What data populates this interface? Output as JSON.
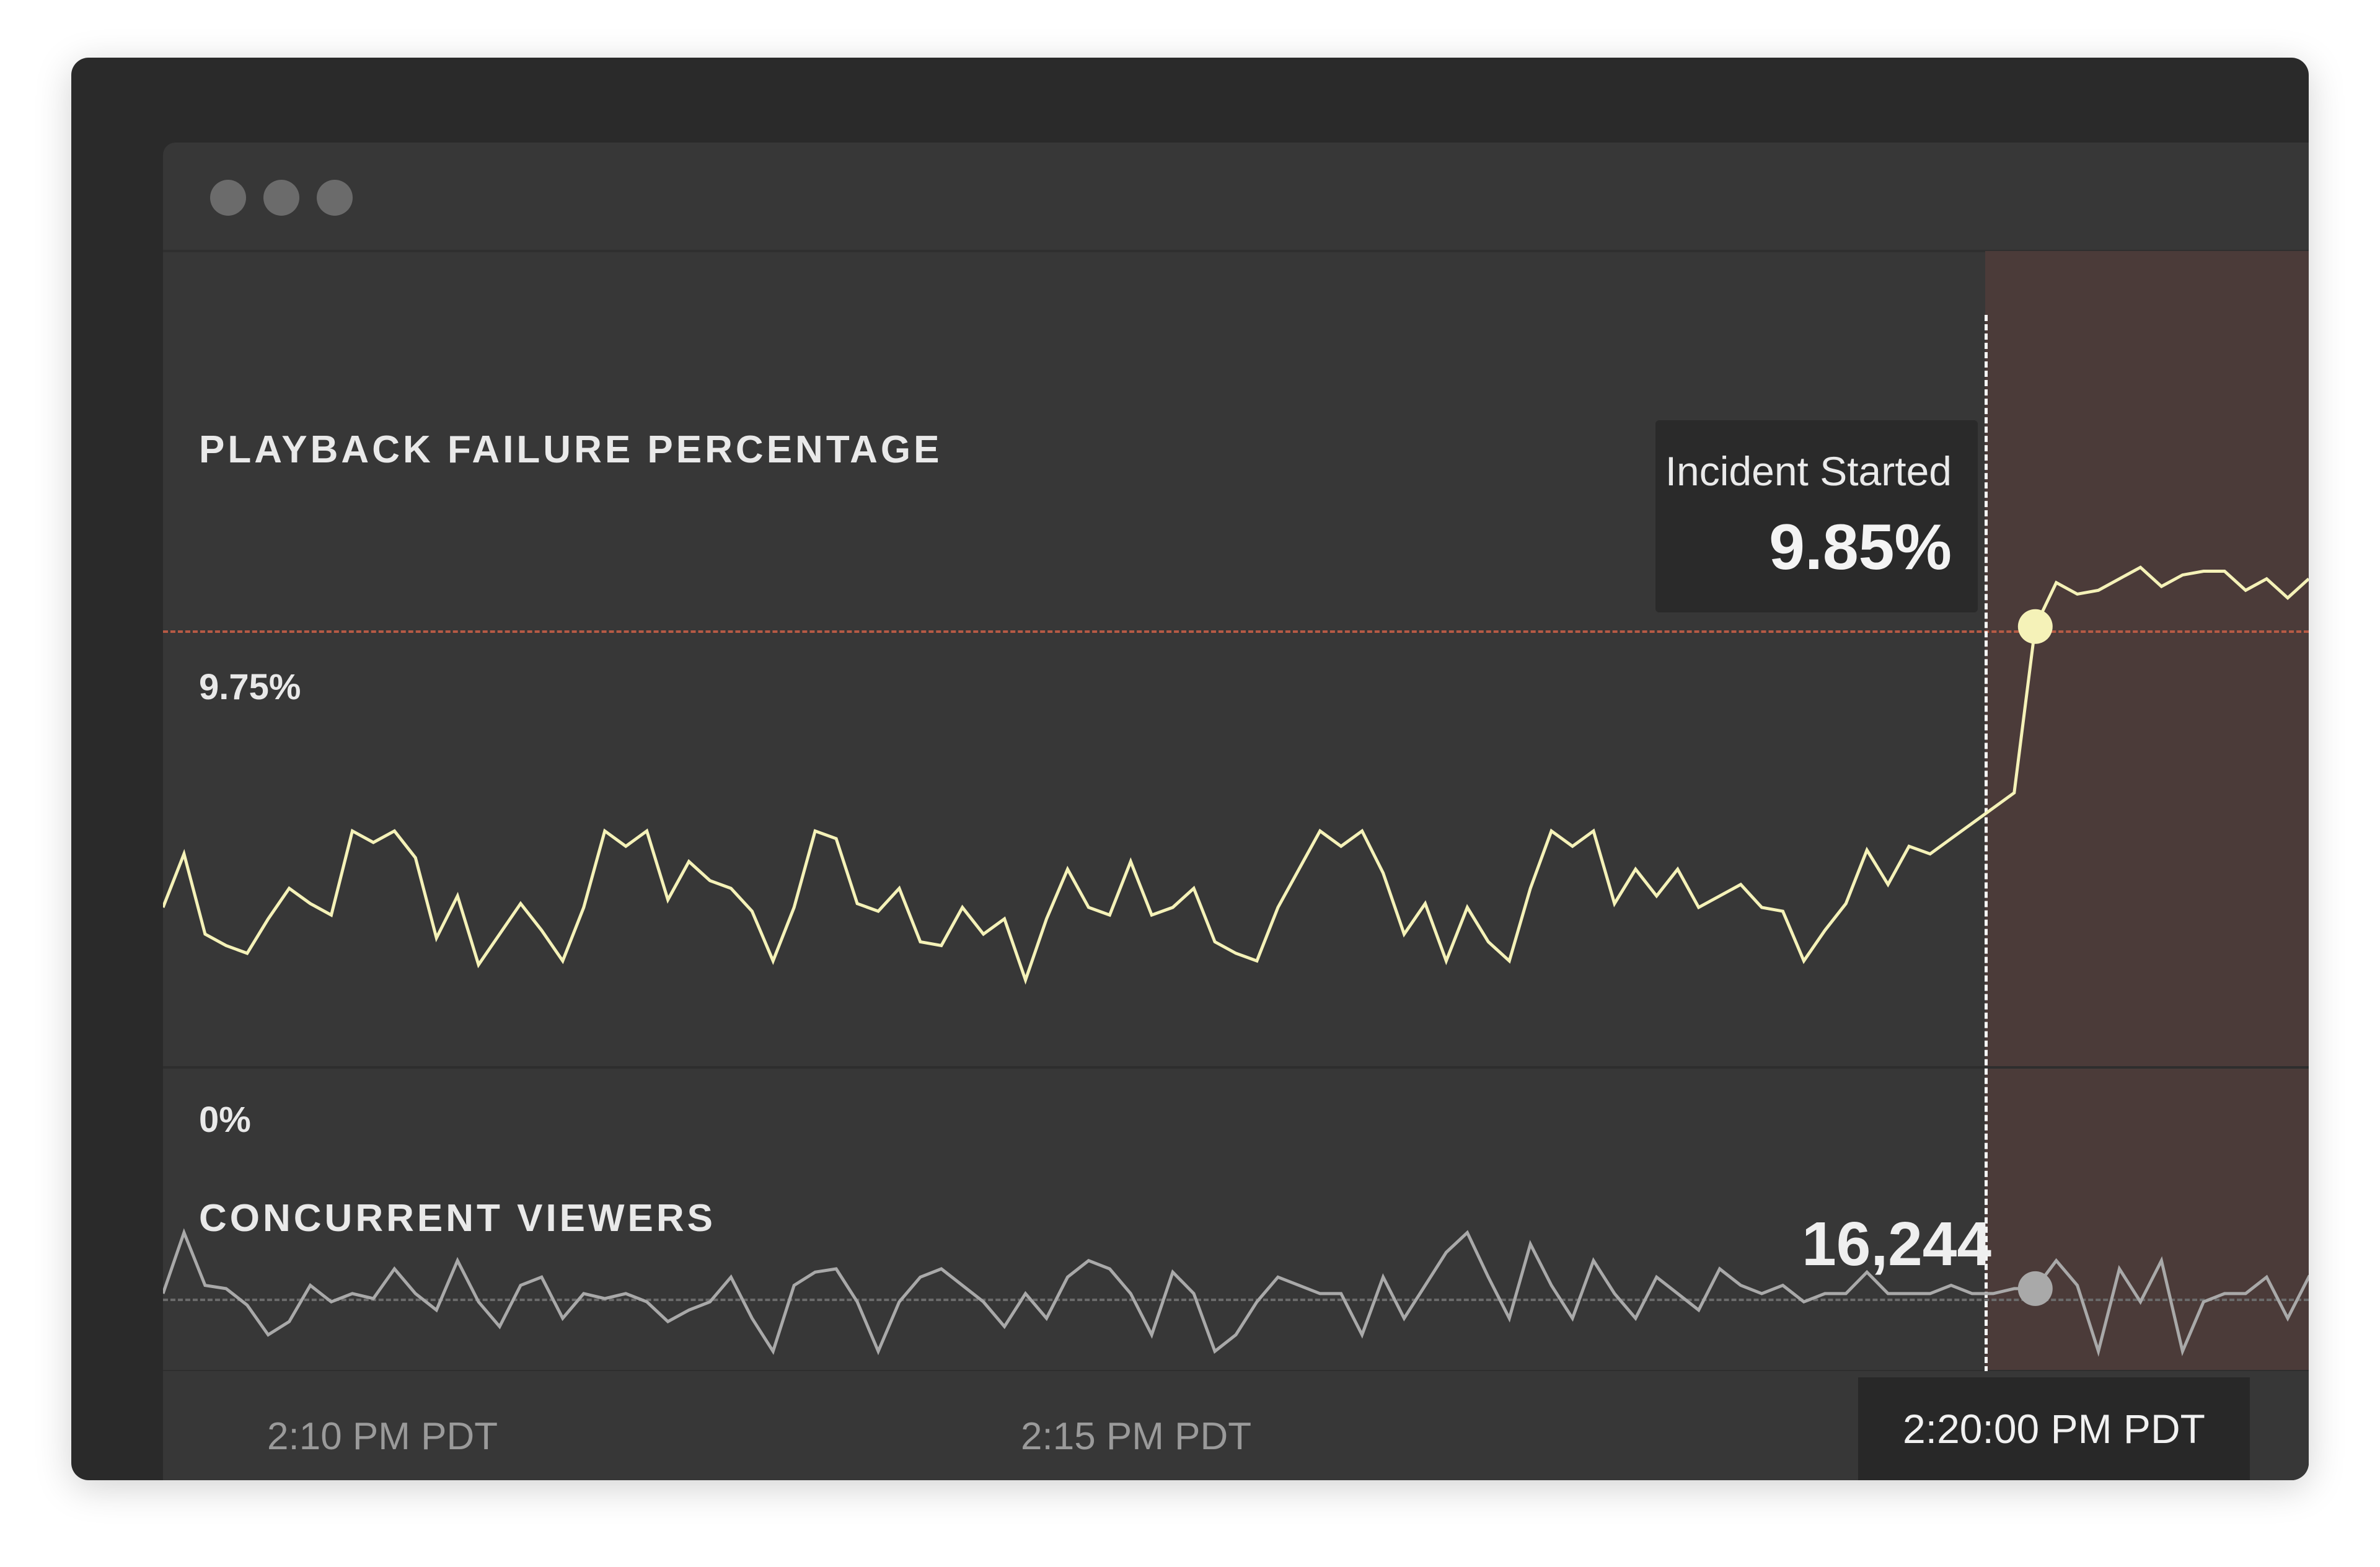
{
  "window": {
    "controls": [
      "close",
      "minimize",
      "zoom"
    ]
  },
  "failure_panel": {
    "title": "PLAYBACK FAILURE PERCENTAGE",
    "threshold_label": "9.75%",
    "baseline_label": "0%",
    "tooltip": {
      "label": "Incident Started",
      "value": "9.85%"
    }
  },
  "viewers_panel": {
    "title": "CONCURRENT VIEWERS",
    "current_value": "16,244"
  },
  "time_axis": {
    "labels": [
      "2:10 PM PDT",
      "2:15 PM PDT"
    ],
    "current": "2:20:00 PM PDT"
  },
  "colors": {
    "failure_line": "#f5f2b8",
    "viewers_line": "#a9a9a9",
    "incident_zone": "#4b3b39",
    "threshold": "#b65a45"
  },
  "chart_data": [
    {
      "type": "line",
      "title": "PLAYBACK FAILURE PERCENTAGE",
      "ylim": [
        0,
        12
      ],
      "ytick_labels": [
        "0%",
        "9.75%"
      ],
      "threshold": 9.75,
      "incident_index": 89,
      "incident_value": 9.85,
      "x_labels": [
        "2:10 PM PDT",
        "2:15 PM PDT",
        "2:20:00 PM PDT"
      ],
      "values": [
        2.5,
        3.9,
        1.8,
        1.5,
        1.3,
        2.2,
        3.0,
        2.6,
        2.3,
        4.5,
        4.2,
        4.5,
        3.8,
        1.7,
        2.8,
        1.0,
        1.8,
        2.6,
        1.9,
        1.1,
        2.5,
        4.5,
        4.1,
        4.5,
        2.7,
        3.7,
        3.2,
        3.0,
        2.4,
        1.1,
        2.5,
        4.5,
        4.3,
        2.6,
        2.4,
        3.0,
        1.6,
        1.5,
        2.5,
        1.8,
        2.2,
        0.6,
        2.2,
        3.5,
        2.5,
        2.3,
        3.7,
        2.3,
        2.5,
        3.0,
        1.6,
        1.3,
        1.1,
        2.5,
        3.5,
        4.5,
        4.1,
        4.5,
        3.4,
        1.8,
        2.6,
        1.1,
        2.5,
        1.6,
        1.1,
        3.0,
        4.5,
        4.1,
        4.5,
        2.6,
        3.5,
        2.8,
        3.5,
        2.5,
        2.8,
        3.1,
        2.5,
        2.4,
        1.1,
        1.9,
        2.6,
        4.0,
        3.1,
        4.1,
        3.9,
        4.3,
        4.7,
        5.1,
        5.5,
        9.85,
        11.0,
        10.7,
        10.8,
        11.1,
        11.4,
        10.9,
        11.2,
        11.3,
        11.3,
        10.8,
        11.1,
        10.6,
        11.1
      ]
    },
    {
      "type": "line",
      "title": "CONCURRENT VIEWERS",
      "incident_index": 89,
      "incident_value": "16,244",
      "x_labels": [
        "2:10 PM PDT",
        "2:15 PM PDT",
        "2:20:00 PM PDT"
      ],
      "values": [
        0.35,
        0.72,
        0.4,
        0.38,
        0.28,
        0.1,
        0.18,
        0.4,
        0.3,
        0.35,
        0.32,
        0.5,
        0.35,
        0.25,
        0.55,
        0.3,
        0.15,
        0.4,
        0.45,
        0.2,
        0.35,
        0.32,
        0.35,
        0.3,
        0.18,
        0.25,
        0.3,
        0.45,
        0.2,
        0.0,
        0.4,
        0.48,
        0.5,
        0.3,
        0.0,
        0.3,
        0.45,
        0.5,
        0.4,
        0.3,
        0.15,
        0.35,
        0.2,
        0.45,
        0.55,
        0.5,
        0.35,
        0.1,
        0.48,
        0.35,
        0.0,
        0.1,
        0.3,
        0.45,
        0.4,
        0.35,
        0.35,
        0.1,
        0.45,
        0.2,
        0.4,
        0.6,
        0.72,
        0.45,
        0.2,
        0.65,
        0.4,
        0.2,
        0.55,
        0.35,
        0.2,
        0.45,
        0.35,
        0.25,
        0.5,
        0.4,
        0.35,
        0.4,
        0.3,
        0.35,
        0.35,
        0.48,
        0.35,
        0.35,
        0.35,
        0.4,
        0.35,
        0.35,
        0.38,
        0.38,
        0.55,
        0.4,
        0.0,
        0.5,
        0.3,
        0.55,
        0.0,
        0.3,
        0.35,
        0.35,
        0.45,
        0.2,
        0.45,
        0.35
      ]
    }
  ]
}
